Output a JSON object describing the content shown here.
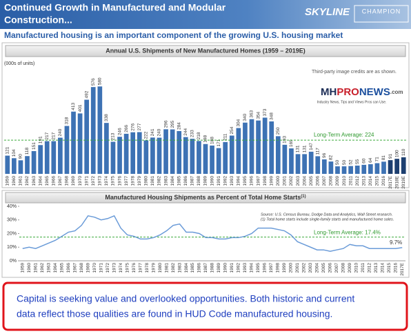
{
  "header": {
    "title_lines": [
      "Continued Growth in Manufactured and Modular",
      "Construction..."
    ],
    "logos": [
      "SKYLINE",
      "CHAMPION"
    ]
  },
  "subtitle": "Manufactured housing is an important component of the growing U.S. housing market",
  "callout": {
    "lines": [
      "Capital is seeking value and overlooked opportunities. Both historic and current",
      "data reflect those qualities are found in HUD Code manufactured housing."
    ]
  },
  "chart_data": [
    {
      "type": "bar",
      "title": "Annual U.S. Shipments of New Manufactured Homes (1959 – 2019E)",
      "unit": "(000s of units)",
      "categories": [
        "1959",
        "1960",
        "1961",
        "1962",
        "1963",
        "1964",
        "1965",
        "1966",
        "1967",
        "1968",
        "1969",
        "1970",
        "1971",
        "1972",
        "1973",
        "1974",
        "1975",
        "1976",
        "1977",
        "1978",
        "1979",
        "1980",
        "1981",
        "1982",
        "1983",
        "1984",
        "1985",
        "1986",
        "1987",
        "1988",
        "1989",
        "1990",
        "1991",
        "1992",
        "1993",
        "1994",
        "1995",
        "1996",
        "1997",
        "1998",
        "1999",
        "2000",
        "2001",
        "2002",
        "2003",
        "2004",
        "2005",
        "2006",
        "2007",
        "2008",
        "2009",
        "2010",
        "2011",
        "2012",
        "2013",
        "2014",
        "2015",
        "2016",
        "2017E",
        "2018E",
        "2019E"
      ],
      "values": [
        121,
        104,
        90,
        118,
        151,
        191,
        217,
        217,
        240,
        318,
        413,
        401,
        492,
        576,
        580,
        338,
        213,
        246,
        266,
        276,
        277,
        222,
        241,
        240,
        296,
        295,
        284,
        244,
        233,
        218,
        198,
        188,
        171,
        211,
        254,
        304,
        340,
        363,
        354,
        373,
        348,
        250,
        193,
        169,
        131,
        131,
        147,
        117,
        96,
        82,
        50,
        50,
        52,
        55,
        60,
        64,
        71,
        81,
        91,
        100,
        110
      ],
      "color": "#3d72b4",
      "estimate_color": "#1d3f70",
      "ylim": [
        0,
        650
      ],
      "average": {
        "value": 224,
        "label": "Long-Term Average: 224"
      },
      "note": "Third-party image credits are as shown.",
      "logo": {
        "parts": [
          "MH",
          "PRO",
          "NEWS",
          ".com"
        ],
        "tagline": "Industry News, Tips and Views Pros can Use."
      }
    },
    {
      "type": "line",
      "title": "Manufactured Housing Shipments as Percent of Total Home Starts",
      "title_note": "(1)",
      "categories": [
        "1959",
        "1960",
        "1961",
        "1962",
        "1963",
        "1964",
        "1965",
        "1966",
        "1967",
        "1968",
        "1969",
        "1970",
        "1971",
        "1972",
        "1973",
        "1974",
        "1975",
        "1976",
        "1977",
        "1978",
        "1979",
        "1980",
        "1981",
        "1982",
        "1983",
        "1984",
        "1985",
        "1986",
        "1987",
        "1988",
        "1989",
        "1990",
        "1991",
        "1992",
        "1993",
        "1994",
        "1995",
        "1996",
        "1997",
        "1998",
        "1999",
        "2000",
        "2001",
        "2002",
        "2003",
        "2004",
        "2005",
        "2006",
        "2007",
        "2008",
        "2009",
        "2010",
        "2011",
        "2012",
        "2013",
        "2014",
        "2015",
        "2016",
        "2017E"
      ],
      "values": [
        9,
        10,
        9,
        11,
        13,
        15,
        18,
        21,
        22,
        26,
        33,
        32,
        30,
        31,
        33,
        24,
        19,
        18,
        16,
        16,
        17,
        19,
        22,
        26,
        27,
        21,
        21,
        20,
        17,
        17,
        16,
        16,
        17,
        17,
        18,
        20,
        24,
        24,
        24,
        23,
        22,
        19,
        14,
        12,
        10,
        8,
        8,
        7,
        8,
        9,
        12,
        11,
        11,
        9,
        9,
        9,
        9,
        9,
        9.7
      ],
      "value_labels": [
        null,
        null,
        null,
        null,
        null,
        null,
        null,
        null,
        null,
        null,
        null,
        null,
        null,
        null,
        null,
        null,
        null,
        null,
        null,
        null,
        null,
        null,
        null,
        null,
        null,
        null,
        null,
        null,
        null,
        null,
        null,
        null,
        null,
        null,
        null,
        null,
        null,
        null,
        null,
        null,
        null,
        null,
        null,
        null,
        null,
        null,
        null,
        null,
        null,
        null,
        null,
        null,
        null,
        null,
        null,
        null,
        null,
        null,
        "9.7%"
      ],
      "color": "#6a9bd8",
      "ylim": [
        0,
        40
      ],
      "yticks": [
        {
          "value": 0,
          "label": "0%"
        },
        {
          "value": 10,
          "label": "10%"
        },
        {
          "value": 20,
          "label": "20%"
        },
        {
          "value": 30,
          "label": "30%"
        },
        {
          "value": 40,
          "label": "40%"
        }
      ],
      "average": {
        "value": 17.4,
        "label": "Long-Term Average: 17.4%"
      },
      "source": [
        "Source: U.S. Census Bureau, Dodge Data and Analytics, Wall Street research.",
        "(1) Total home starts include single-family starts and manufactured home sales."
      ]
    }
  ]
}
